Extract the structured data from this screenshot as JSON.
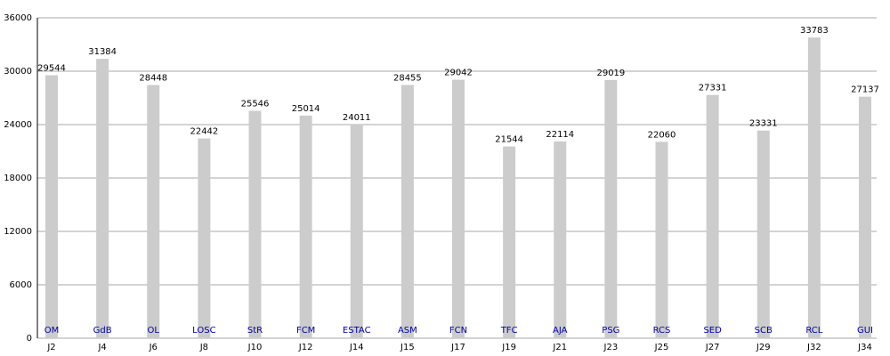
{
  "chart_data": {
    "type": "bar",
    "categories": [
      "J2",
      "J4",
      "J6",
      "J8",
      "J10",
      "J12",
      "J14",
      "J15",
      "J17",
      "J19",
      "J21",
      "J23",
      "J25",
      "J27",
      "J29",
      "J32",
      "J34"
    ],
    "bar_labels": [
      "OM",
      "GdB",
      "OL",
      "LOSC",
      "StR",
      "FCM",
      "ESTAC",
      "ASM",
      "FCN",
      "TFC",
      "AJA",
      "PSG",
      "RCS",
      "SED",
      "SCB",
      "RCL",
      "GUI"
    ],
    "values": [
      29544,
      31384,
      28448,
      22442,
      25546,
      25014,
      24011,
      28455,
      29042,
      21544,
      22114,
      29019,
      22060,
      27331,
      23331,
      33783,
      27137
    ],
    "color": "#cccccc",
    "label_color": "#0000a0",
    "ylim": [
      0,
      36000
    ],
    "yticks": [
      0,
      6000,
      12000,
      18000,
      24000,
      30000,
      36000
    ],
    "grid": true
  }
}
